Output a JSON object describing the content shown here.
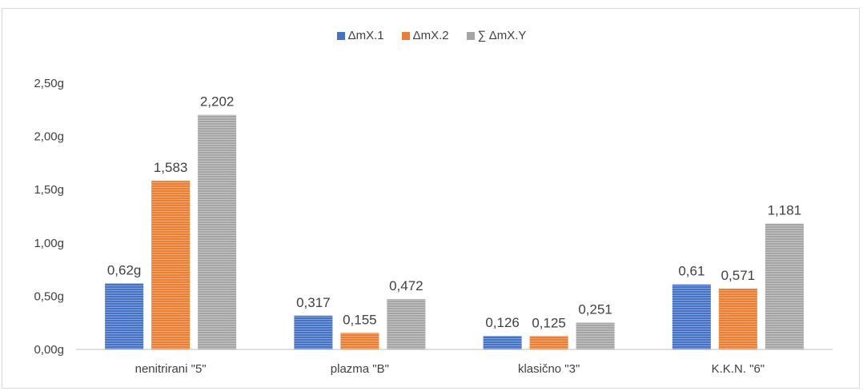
{
  "chart_data": {
    "type": "bar",
    "categories": [
      "nenitrirani \"5\"",
      "plazma \"B\"",
      "klasično \"3\"",
      "K.K.N. \"6\""
    ],
    "series": [
      {
        "name": "ΔmX.1",
        "values": [
          0.62,
          0.317,
          0.126,
          0.61
        ],
        "labels": [
          "0,62g",
          "0,317",
          "0,126",
          "0,61"
        ],
        "color": "#4472c4"
      },
      {
        "name": "ΔmX.2",
        "values": [
          1.583,
          0.155,
          0.125,
          0.571
        ],
        "labels": [
          "1,583",
          "0,155",
          "0,125",
          "0,571"
        ],
        "color": "#ed7d31"
      },
      {
        "name": "∑ ΔmX.Y",
        "values": [
          2.202,
          0.472,
          0.251,
          1.181
        ],
        "labels": [
          "2,202",
          "0,472",
          "0,251",
          "1,181"
        ],
        "color": "#a5a5a5"
      }
    ],
    "yticks": [
      "0,00g",
      "0,50g",
      "1,00g",
      "1,50g",
      "2,00g",
      "2,50g"
    ],
    "ylim": [
      0,
      2.5
    ],
    "legend_position": "top",
    "grid": false,
    "bar_texture": "horizontal-stripes"
  }
}
